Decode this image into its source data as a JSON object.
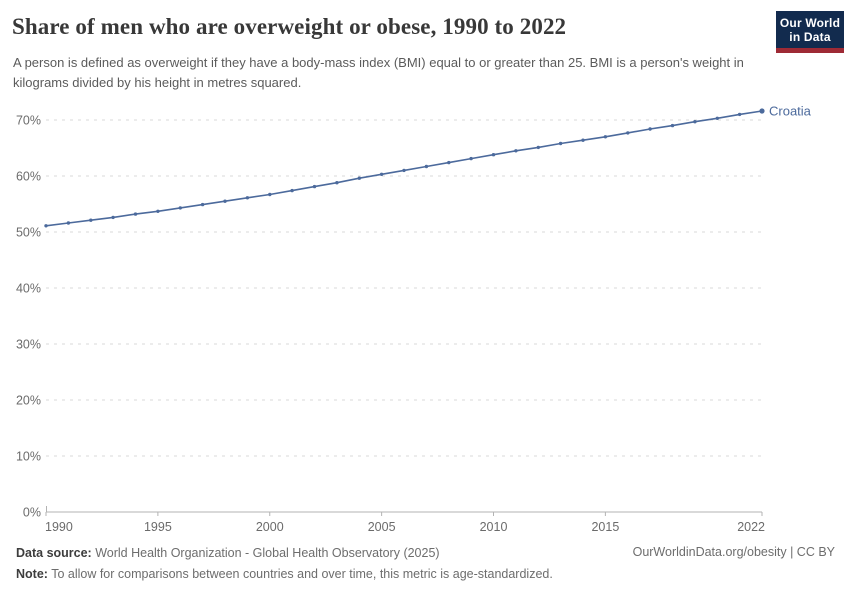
{
  "header": {
    "logo": {
      "line1": "Our World",
      "line2": "in Data",
      "bg_color": "#122b4e",
      "accent_color": "#9e2a35"
    }
  },
  "chart_data": {
    "type": "line",
    "title": "Share of men who are overweight or obese, 1990 to 2022",
    "subtitle": "A person is defined as overweight if they have a body-mass index (BMI) equal to or greater than 25. BMI is a person's weight in kilograms divided by his height in metres squared.",
    "xlabel": "",
    "ylabel": "",
    "xlim": [
      1990,
      2022
    ],
    "ylim": [
      0,
      70
    ],
    "xticks": [
      1990,
      1995,
      2000,
      2005,
      2010,
      2015,
      2022
    ],
    "yticks": [
      0,
      10,
      20,
      30,
      40,
      50,
      60,
      70
    ],
    "ytick_suffix": "%",
    "grid": "horizontal-dashed",
    "legend": "end-of-line-label",
    "series": [
      {
        "name": "Croatia",
        "color": "#4C6A9C",
        "x": [
          1990,
          1991,
          1992,
          1993,
          1994,
          1995,
          1996,
          1997,
          1998,
          1999,
          2000,
          2001,
          2002,
          2003,
          2004,
          2005,
          2006,
          2007,
          2008,
          2009,
          2010,
          2011,
          2012,
          2013,
          2014,
          2015,
          2016,
          2017,
          2018,
          2019,
          2020,
          2021,
          2022
        ],
        "values": [
          51.1,
          51.6,
          52.1,
          52.6,
          53.2,
          53.7,
          54.3,
          54.9,
          55.5,
          56.1,
          56.7,
          57.4,
          58.1,
          58.8,
          59.6,
          60.3,
          61.0,
          61.7,
          62.4,
          63.1,
          63.8,
          64.5,
          65.1,
          65.8,
          66.4,
          67.0,
          67.7,
          68.4,
          69.0,
          69.7,
          70.3,
          71.0,
          71.6
        ]
      }
    ],
    "colors": {
      "gridline": "#dadada",
      "axis": "#b3b3b3",
      "tick_label": "#6b6b6b"
    }
  },
  "footer": {
    "datasource_label": "Data source:",
    "datasource": " World Health Organization - Global Health Observatory (2025)",
    "note_label": "Note:",
    "note": " To allow for comparisons between countries and over time, this metric is age-standardized.",
    "link": "OurWorldinData.org/obesity | CC BY"
  }
}
